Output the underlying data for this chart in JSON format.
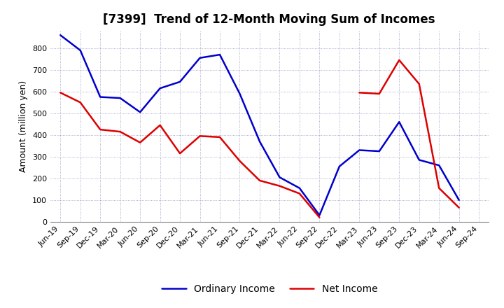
{
  "title": "[7399]  Trend of 12-Month Moving Sum of Incomes",
  "ylabel": "Amount (million yen)",
  "background_color": "#ffffff",
  "plot_bg_color": "#ffffff",
  "grid_color": "#8888bb",
  "x_labels": [
    "Jun-19",
    "Sep-19",
    "Dec-19",
    "Mar-20",
    "Jun-20",
    "Sep-20",
    "Dec-20",
    "Mar-21",
    "Jun-21",
    "Sep-21",
    "Dec-21",
    "Mar-22",
    "Jun-22",
    "Sep-22",
    "Dec-22",
    "Mar-23",
    "Jun-23",
    "Sep-23",
    "Dec-23",
    "Mar-24",
    "Jun-24",
    "Sep-24"
  ],
  "ordinary_income": [
    860,
    790,
    575,
    570,
    505,
    615,
    645,
    755,
    770,
    590,
    370,
    205,
    155,
    30,
    255,
    330,
    325,
    460,
    285,
    260,
    100,
    null
  ],
  "net_income": [
    595,
    550,
    425,
    415,
    365,
    445,
    315,
    395,
    390,
    280,
    190,
    165,
    130,
    20,
    null,
    595,
    590,
    745,
    635,
    155,
    65,
    null
  ],
  "ordinary_color": "#0000cc",
  "net_color": "#dd0000",
  "ylim": [
    0,
    880
  ],
  "yticks": [
    0,
    100,
    200,
    300,
    400,
    500,
    600,
    700,
    800
  ],
  "line_width": 1.8,
  "title_fontsize": 12,
  "legend_fontsize": 10,
  "tick_fontsize": 8,
  "ylabel_fontsize": 9
}
